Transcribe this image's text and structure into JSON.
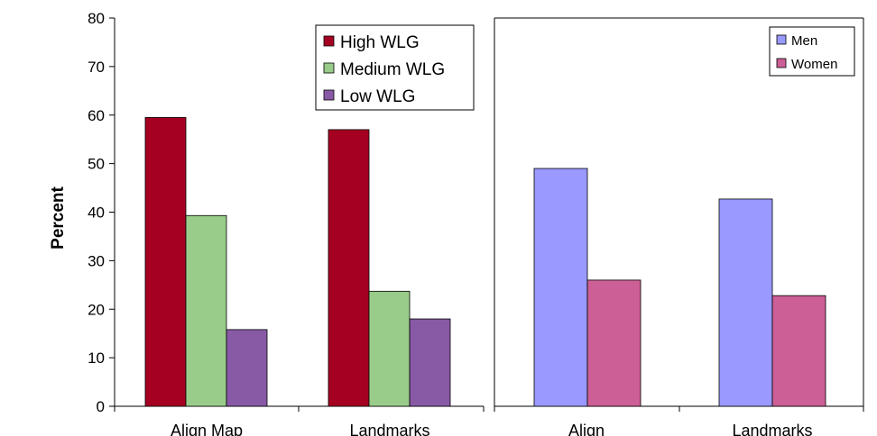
{
  "chart_data": [
    {
      "type": "bar",
      "ylabel": "Percent",
      "ylim": [
        0,
        80
      ],
      "yticks": [
        0,
        10,
        20,
        30,
        40,
        50,
        60,
        70,
        80
      ],
      "categories": [
        "Align Map",
        "Landmarks"
      ],
      "series": [
        {
          "name": "High WLG",
          "color": "#a50021",
          "values": [
            59.5,
            57
          ]
        },
        {
          "name": "Medium WLG",
          "color": "#99cc8a",
          "values": [
            39.3,
            23.7
          ]
        },
        {
          "name": "Low WLG",
          "color": "#8859a5",
          "values": [
            15.8,
            18
          ]
        }
      ],
      "legend": "top-right",
      "grid": false
    },
    {
      "type": "bar",
      "ylim": [
        0,
        80
      ],
      "categories": [
        "Align",
        "Landmarks"
      ],
      "series": [
        {
          "name": "Men",
          "color": "#9999ff",
          "values": [
            49,
            42.7
          ]
        },
        {
          "name": "Women",
          "color": "#cc5f95",
          "values": [
            26,
            22.8
          ]
        }
      ],
      "legend": "top-right",
      "grid": false
    }
  ]
}
